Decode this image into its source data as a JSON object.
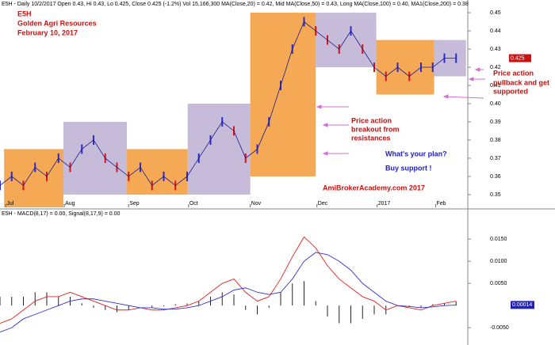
{
  "chart_data": [
    {
      "type": "line",
      "header": "E5H - Daily 10/2/2017 Open 0.43, Hi 0.43, Lo 0.425, Close 0.425 (-1.2%) Vol 15,166,300 MA(Close,20) = 0.42, Mid MA(Close,50) = 0.43, Long MA(Close,100) = 0.40, MA1(Close,200) = 0.38",
      "title": "E5H",
      "subtitle": "Golden Agri Resources",
      "date": "February 10, 2017",
      "annotations": [
        "Price action",
        "breakout from",
        "resistances",
        "Price action",
        "pullback and get",
        "supported",
        "What's your plan?",
        "Buy support !",
        "AmiBrokerAcademy.com  2017"
      ],
      "x": [
        0,
        4,
        8,
        12,
        16,
        20,
        24,
        28,
        32,
        36,
        40,
        44,
        48,
        52,
        56,
        60,
        64,
        68,
        72,
        76,
        80,
        84,
        88,
        92,
        96,
        100,
        104,
        108,
        112,
        116,
        120,
        124,
        128,
        132,
        136,
        140,
        144,
        148,
        152,
        156
      ],
      "series": [
        {
          "color": "#1a1a8c",
          "values": [
            0.355,
            0.36,
            0.355,
            0.365,
            0.36,
            0.37,
            0.365,
            0.375,
            0.38,
            0.37,
            0.365,
            0.36,
            0.365,
            0.355,
            0.36,
            0.355,
            0.36,
            0.37,
            0.38,
            0.39,
            0.385,
            0.37,
            0.375,
            0.39,
            0.41,
            0.43,
            0.445,
            0.44,
            0.435,
            0.43,
            0.44,
            0.43,
            0.42,
            0.415,
            0.42,
            0.415,
            0.42,
            0.42,
            0.425,
            0.425
          ]
        }
      ],
      "zones": [
        {
          "x0": 1.4,
          "x1": 21.7,
          "low": 0.343,
          "high": 0.375,
          "color": "#f28c1c"
        },
        {
          "x0": 21.7,
          "x1": 43.4,
          "low": 0.35,
          "high": 0.39,
          "color": "#b3a6cc"
        },
        {
          "x0": 43.4,
          "x1": 64.2,
          "low": 0.35,
          "high": 0.375,
          "color": "#f28c1c"
        },
        {
          "x0": 64.2,
          "x1": 85.6,
          "low": 0.35,
          "high": 0.4,
          "color": "#b3a6cc"
        },
        {
          "x0": 85.6,
          "x1": 108,
          "low": 0.36,
          "high": 0.45,
          "color": "#f28c1c"
        },
        {
          "x0": 108,
          "x1": 128.7,
          "low": 0.42,
          "high": 0.45,
          "color": "#b3a6cc"
        },
        {
          "x0": 128.7,
          "x1": 148.5,
          "low": 0.405,
          "high": 0.435,
          "color": "#f28c1c"
        },
        {
          "x0": 148.5,
          "x1": 159.4,
          "low": 0.415,
          "high": 0.435,
          "color": "#b3a6cc"
        }
      ],
      "last": {
        "value": 0.425,
        "label": "0.425"
      },
      "xlim": [
        0,
        160
      ],
      "xticks": [
        {
          "value": 2,
          "label": "Jul"
        },
        {
          "value": 22,
          "label": "Aug"
        },
        {
          "value": 44,
          "label": "Sep"
        },
        {
          "value": 64.5,
          "label": "Oct"
        },
        {
          "value": 85.6,
          "label": "Nov"
        },
        {
          "value": 108.4,
          "label": "Dec"
        },
        {
          "value": 129,
          "label": "2017"
        },
        {
          "value": 149,
          "label": "Feb"
        }
      ],
      "ylim": [
        0.343,
        0.4535
      ],
      "yticks": [
        0.35,
        0.36,
        0.37,
        0.38,
        0.39,
        {
          "value": 0.4,
          "label": "0.40"
        },
        0.41,
        0.42,
        0.43,
        0.44,
        0.45
      ]
    },
    {
      "type": "macd",
      "header": "E5H - MACD(8,17) = 0.00, Signal(8,17,9) = 0.00",
      "x": [
        0,
        4,
        8,
        12,
        16,
        20,
        24,
        28,
        32,
        36,
        40,
        44,
        48,
        52,
        56,
        60,
        64,
        68,
        72,
        76,
        80,
        84,
        88,
        92,
        96,
        100,
        104,
        108,
        112,
        116,
        120,
        124,
        128,
        132,
        136,
        140,
        144,
        148,
        152,
        156
      ],
      "series": [
        {
          "color": "#e02020",
          "values": [
            -0.004,
            -0.003,
            -0.001,
            0.001,
            0.002,
            0.002,
            0.003,
            0.002,
            0.001,
            0,
            -0.001,
            -0.001,
            -0.0005,
            -0.001,
            -0.001,
            -0.0005,
            0,
            0.001,
            0.003,
            0.005,
            0.006,
            0.003,
            0.001,
            0.002,
            0.006,
            0.011,
            0.0155,
            0.013,
            0.009,
            0.006,
            0.004,
            0.002,
            0.001,
            -0.001,
            0,
            -0.0005,
            -0.001,
            0,
            0.0005,
            0.001
          ]
        },
        {
          "color": "#3030d0",
          "values": [
            -0.006,
            -0.005,
            -0.003,
            -0.002,
            -0.001,
            0,
            0.001,
            0.0015,
            0.0015,
            0.001,
            0.0005,
            0,
            -0.0005,
            -0.0005,
            -0.0008,
            -0.0008,
            -0.0005,
            0,
            0.001,
            0.002,
            0.0035,
            0.004,
            0.003,
            0.0025,
            0.003,
            0.006,
            0.01,
            0.012,
            0.0115,
            0.01,
            0.008,
            0.005,
            0.003,
            0.001,
            0,
            -0.0002,
            -0.0005,
            -0.0003,
            0,
            0.0001
          ]
        }
      ],
      "histogram": {
        "color": "#222222",
        "values": [
          0.002,
          0.002,
          0.002,
          0.003,
          0.003,
          0.002,
          0.002,
          0.0005,
          -0.0005,
          -0.001,
          -0.0015,
          -0.001,
          0,
          -0.0005,
          -0.0002,
          0.0003,
          0.0005,
          0.001,
          0.002,
          0.003,
          0.0025,
          -0.001,
          -0.002,
          -0.0005,
          0.003,
          0.005,
          0.0055,
          0.001,
          -0.0025,
          -0.004,
          -0.004,
          -0.003,
          -0.002,
          -0.002,
          0,
          -0.0003,
          -0.0005,
          0.0003,
          0.0005,
          0.0009
        ]
      },
      "last": {
        "value": 0.00014,
        "label": "0.00014"
      },
      "xlim": [
        0,
        160
      ],
      "ylim": [
        -0.0089,
        0.0211
      ],
      "yticks": [
        {
          "value": 0.015,
          "label": "0.0150"
        },
        {
          "value": 0.01,
          "label": "0.0100"
        },
        {
          "value": 0.005,
          "label": "0.0050"
        },
        {
          "value": -0.005,
          "label": "-0.0050"
        }
      ]
    }
  ]
}
